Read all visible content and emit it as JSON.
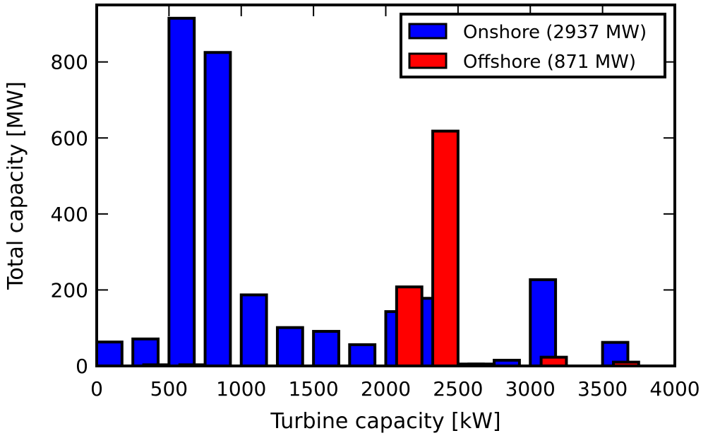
{
  "chart_data": {
    "type": "bar",
    "xlabel": "Turbine capacity [kW]",
    "ylabel": "Total capacity [MW]",
    "xlim": [
      0,
      4000
    ],
    "ylim": [
      0,
      950
    ],
    "xticks": [
      0,
      500,
      1000,
      1500,
      2000,
      2500,
      3000,
      3500,
      4000
    ],
    "yticks": [
      0,
      200,
      400,
      600,
      800
    ],
    "grid": false,
    "legend_position": "top-right",
    "series": [
      {
        "name": "Onshore (2937 MW)",
        "color": "#0000ff",
        "bars": [
          {
            "x0": 0,
            "x1": 175,
            "value": 63
          },
          {
            "x0": 250,
            "x1": 425,
            "value": 71
          },
          {
            "x0": 500,
            "x1": 675,
            "value": 915
          },
          {
            "x0": 750,
            "x1": 925,
            "value": 825
          },
          {
            "x0": 1000,
            "x1": 1175,
            "value": 187
          },
          {
            "x0": 1250,
            "x1": 1425,
            "value": 101
          },
          {
            "x0": 1500,
            "x1": 1675,
            "value": 91
          },
          {
            "x0": 1750,
            "x1": 1925,
            "value": 56
          },
          {
            "x0": 2000,
            "x1": 2175,
            "value": 143
          },
          {
            "x0": 2250,
            "x1": 2425,
            "value": 178
          },
          {
            "x0": 2500,
            "x1": 2675,
            "value": 5
          },
          {
            "x0": 2750,
            "x1": 2925,
            "value": 15
          },
          {
            "x0": 3000,
            "x1": 3175,
            "value": 227
          },
          {
            "x0": 3250,
            "x1": 3425,
            "value": 0
          },
          {
            "x0": 3500,
            "x1": 3675,
            "value": 62
          },
          {
            "x0": 3750,
            "x1": 3925,
            "value": 0
          }
        ]
      },
      {
        "name": "Offshore (871 MW)",
        "color": "#ff0000",
        "bars": [
          {
            "x0": 325,
            "x1": 500,
            "value": 3
          },
          {
            "x0": 575,
            "x1": 750,
            "value": 3
          },
          {
            "x0": 2075,
            "x1": 2250,
            "value": 208
          },
          {
            "x0": 2325,
            "x1": 2500,
            "value": 618
          },
          {
            "x0": 2575,
            "x1": 2750,
            "value": 5
          },
          {
            "x0": 3075,
            "x1": 3250,
            "value": 23
          },
          {
            "x0": 3325,
            "x1": 3500,
            "value": 0
          },
          {
            "x0": 3575,
            "x1": 3750,
            "value": 10
          }
        ]
      }
    ]
  }
}
